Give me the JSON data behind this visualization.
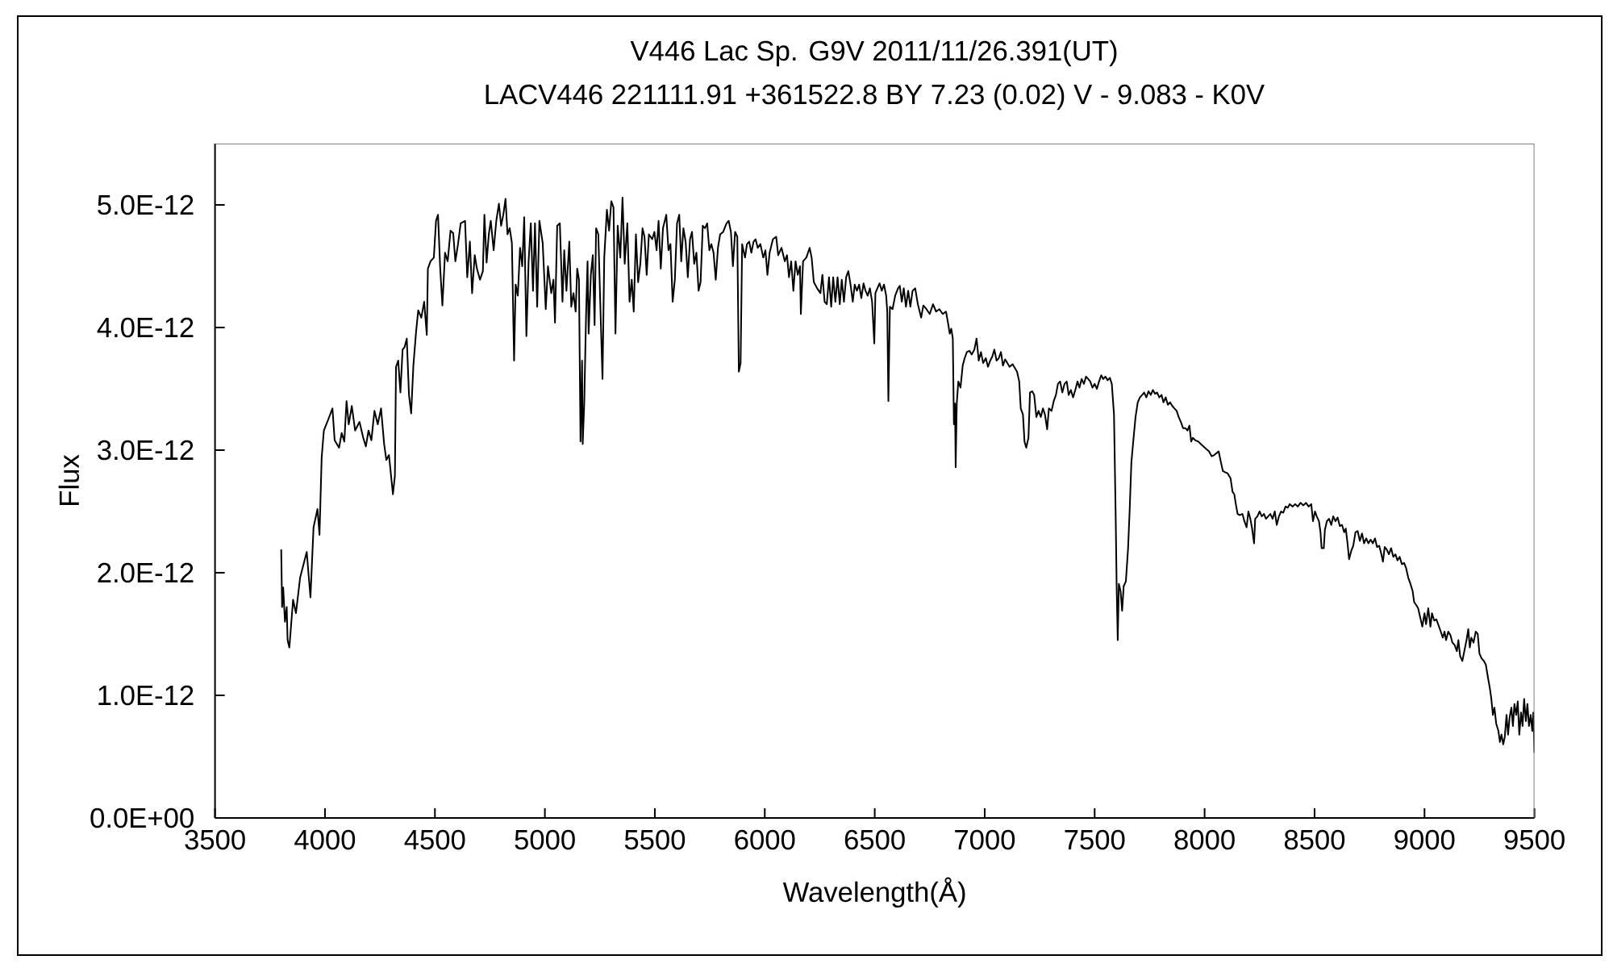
{
  "chart_data": {
    "type": "line",
    "title": "V446 Lac   Sp. G9V   2011/11/26.391(UT)",
    "subtitle": "LACV446 221111.91 +361522.8 BY 7.23 (0.02) V - 9.083 - K0V",
    "xlabel": "Wavelength(Å)",
    "ylabel": "Flux",
    "x": [
      3801,
      3805,
      3810,
      3818,
      3826,
      3830,
      3838,
      3855,
      3868,
      3887,
      3917,
      3934,
      3948,
      3966,
      3975,
      3985,
      3995,
      4015,
      4034,
      4044,
      4064,
      4076,
      4088,
      4098,
      4108,
      4122,
      4137,
      4157,
      4174,
      4186,
      4198,
      4211,
      4225,
      4240,
      4255,
      4269,
      4279,
      4291,
      4309,
      4318,
      4323,
      4333,
      4343,
      4353,
      4362,
      4372,
      4382,
      4392,
      4402,
      4414,
      4424,
      4438,
      4451,
      4463,
      4468,
      4480,
      4495,
      4505,
      4514,
      4524,
      4534,
      4546,
      4558,
      4571,
      4583,
      4593,
      4605,
      4617,
      4637,
      4647,
      4659,
      4669,
      4681,
      4691,
      4705,
      4718,
      4725,
      4735,
      4745,
      4754,
      4767,
      4779,
      4791,
      4801,
      4811,
      4821,
      4830,
      4840,
      4850,
      4860,
      4867,
      4877,
      4887,
      4897,
      4906,
      4916,
      4926,
      4936,
      4946,
      4955,
      4965,
      4975,
      4990,
      5004,
      5014,
      5029,
      5039,
      5046,
      5056,
      5068,
      5080,
      5088,
      5098,
      5111,
      5120,
      5130,
      5140,
      5147,
      5155,
      5162,
      5169,
      5172,
      5179,
      5187,
      5194,
      5199,
      5209,
      5218,
      5226,
      5233,
      5243,
      5253,
      5262,
      5270,
      5282,
      5292,
      5302,
      5312,
      5321,
      5331,
      5343,
      5353,
      5363,
      5375,
      5385,
      5395,
      5404,
      5414,
      5424,
      5434,
      5444,
      5453,
      5463,
      5473,
      5488,
      5498,
      5508,
      5517,
      5527,
      5537,
      5552,
      5562,
      5571,
      5581,
      5591,
      5601,
      5611,
      5620,
      5630,
      5640,
      5650,
      5660,
      5669,
      5679,
      5689,
      5699,
      5708,
      5718,
      5728,
      5738,
      5748,
      5757,
      5767,
      5777,
      5787,
      5797,
      5811,
      5826,
      5836,
      5846,
      5855,
      5865,
      5875,
      5882,
      5890,
      5897,
      5910,
      5919,
      5929,
      5939,
      5949,
      5958,
      5968,
      5980,
      5993,
      6003,
      6012,
      6022,
      6037,
      6052,
      6061,
      6076,
      6091,
      6101,
      6110,
      6120,
      6130,
      6140,
      6150,
      6160,
      6164,
      6174,
      6189,
      6204,
      6213,
      6223,
      6238,
      6253,
      6262,
      6272,
      6282,
      6292,
      6302,
      6311,
      6321,
      6331,
      6341,
      6350,
      6360,
      6370,
      6380,
      6390,
      6400,
      6409,
      6419,
      6429,
      6439,
      6449,
      6458,
      6468,
      6478,
      6488,
      6498,
      6503,
      6512,
      6522,
      6532,
      6542,
      6552,
      6557,
      6562,
      6569,
      6581,
      6593,
      6606,
      6614,
      6623,
      6632,
      6642,
      6652,
      6662,
      6672,
      6684,
      6696,
      6711,
      6721,
      6735,
      6750,
      6765,
      6779,
      6794,
      6809,
      6824,
      6833,
      6841,
      6848,
      6855,
      6860,
      6865,
      6868,
      6873,
      6880,
      6890,
      6900,
      6909,
      6919,
      6931,
      6941,
      6953,
      6963,
      6973,
      6983,
      6993,
      7005,
      7015,
      7025,
      7034,
      7044,
      7054,
      7064,
      7074,
      7083,
      7093,
      7103,
      7113,
      7127,
      7137,
      7147,
      7157,
      7164,
      7174,
      7181,
      7189,
      7199,
      7206,
      7216,
      7225,
      7235,
      7245,
      7255,
      7265,
      7274,
      7284,
      7292,
      7304,
      7314,
      7324,
      7333,
      7343,
      7353,
      7363,
      7373,
      7382,
      7392,
      7402,
      7412,
      7422,
      7431,
      7441,
      7451,
      7461,
      7471,
      7480,
      7490,
      7500,
      7510,
      7520,
      7530,
      7539,
      7549,
      7559,
      7569,
      7578,
      7588,
      7596,
      7600,
      7605,
      7610,
      7618,
      7625,
      7632,
      7642,
      7652,
      7659,
      7667,
      7677,
      7686,
      7696,
      7706,
      7716,
      7725,
      7735,
      7745,
      7755,
      7765,
      7774,
      7784,
      7794,
      7804,
      7813,
      7823,
      7833,
      7843,
      7853,
      7863,
      7873,
      7882,
      7892,
      7902,
      7912,
      7922,
      7931,
      7939,
      7946,
      7958,
      7971,
      7983,
      7995,
      8007,
      8020,
      8032,
      8044,
      8064,
      8073,
      8083,
      8093,
      8105,
      8118,
      8127,
      8135,
      8142,
      8150,
      8160,
      8172,
      8181,
      8191,
      8199,
      8208,
      8216,
      8225,
      8230,
      8240,
      8250,
      8260,
      8270,
      8279,
      8289,
      8299,
      8309,
      8319,
      8328,
      8338,
      8348,
      8358,
      8368,
      8378,
      8387,
      8400,
      8412,
      8424,
      8436,
      8449,
      8461,
      8473,
      8485,
      8493,
      8502,
      8510,
      8520,
      8527,
      8532,
      8542,
      8547,
      8556,
      8566,
      8576,
      8585,
      8595,
      8605,
      8615,
      8625,
      8635,
      8642,
      8650,
      8657,
      8667,
      8676,
      8686,
      8696,
      8706,
      8716,
      8725,
      8735,
      8745,
      8755,
      8765,
      8775,
      8784,
      8794,
      8804,
      8811,
      8819,
      8828,
      8838,
      8848,
      8858,
      8868,
      8877,
      8887,
      8897,
      8907,
      8916,
      8926,
      8936,
      8946,
      8953,
      8961,
      8971,
      8980,
      8990,
      9000,
      9007,
      9017,
      9027,
      9034,
      9044,
      9054,
      9064,
      9074,
      9083,
      9091,
      9098,
      9108,
      9118,
      9127,
      9137,
      9147,
      9154,
      9162,
      9172,
      9181,
      9191,
      9199,
      9206,
      9213,
      9223,
      9233,
      9242,
      9250,
      9260,
      9270,
      9279,
      9289,
      9297,
      9304,
      9311,
      9318,
      9326,
      9336,
      9343,
      9350,
      9358,
      9365,
      9373,
      9380,
      9387,
      9395,
      9402,
      9409,
      9417,
      9424,
      9431,
      9439,
      9446,
      9453,
      9461,
      9468,
      9475,
      9483,
      9490,
      9495,
      9500
    ],
    "series": [
      {
        "color": "#000000",
        "values": [
          2.19e-12,
          1.72e-12,
          1.88e-12,
          1.6e-12,
          1.72e-12,
          1.45e-12,
          1.39e-12,
          1.78e-12,
          1.67e-12,
          1.96e-12,
          2.17e-12,
          1.8e-12,
          2.37e-12,
          2.52e-12,
          2.31e-12,
          2.94e-12,
          3.16e-12,
          3.25e-12,
          3.34e-12,
          3.08e-12,
          3.02e-12,
          3.14e-12,
          3.07e-12,
          3.4e-12,
          3.21e-12,
          3.36e-12,
          3.16e-12,
          3.23e-12,
          3.1e-12,
          3.03e-12,
          3.16e-12,
          3.08e-12,
          3.32e-12,
          3.21e-12,
          3.34e-12,
          3.05e-12,
          2.92e-12,
          2.96e-12,
          2.64e-12,
          2.79e-12,
          3.68e-12,
          3.73e-12,
          3.47e-12,
          3.82e-12,
          3.84e-12,
          3.91e-12,
          3.45e-12,
          3.3e-12,
          3.69e-12,
          3.96e-12,
          4.14e-12,
          4.08e-12,
          4.21e-12,
          3.94e-12,
          4.48e-12,
          4.54e-12,
          4.57e-12,
          4.87e-12,
          4.92e-12,
          4.48e-12,
          4.18e-12,
          4.61e-12,
          4.54e-12,
          4.79e-12,
          4.77e-12,
          4.54e-12,
          4.68e-12,
          4.85e-12,
          4.87e-12,
          4.41e-12,
          4.7e-12,
          4.28e-12,
          4.59e-12,
          4.48e-12,
          4.39e-12,
          4.46e-12,
          4.92e-12,
          4.53e-12,
          4.76e-12,
          4.87e-12,
          4.63e-12,
          4.87e-12,
          5.01e-12,
          4.83e-12,
          4.92e-12,
          5.05e-12,
          4.76e-12,
          4.81e-12,
          4.69e-12,
          3.73e-12,
          4.35e-12,
          4.26e-12,
          4.65e-12,
          4.5e-12,
          4.9e-12,
          3.93e-12,
          4.54e-12,
          4.85e-12,
          4.3e-12,
          4.85e-12,
          4.17e-12,
          4.87e-12,
          4.69e-12,
          4.15e-12,
          4.5e-12,
          4.28e-12,
          4.39e-12,
          4.04e-12,
          4.83e-12,
          4.85e-12,
          4.21e-12,
          4.63e-12,
          4.3e-12,
          4.7e-12,
          4.17e-12,
          4.28e-12,
          4.13e-12,
          4.48e-12,
          4.39e-12,
          3.07e-12,
          3.73e-12,
          3.05e-12,
          3.38e-12,
          4.08e-12,
          4.54e-12,
          3.95e-12,
          4.43e-12,
          4.59e-12,
          4.02e-12,
          4.81e-12,
          4.76e-12,
          4.13e-12,
          3.58e-12,
          4.57e-12,
          4.96e-12,
          4.79e-12,
          5.03e-12,
          4.98e-12,
          3.95e-12,
          4.83e-12,
          4.57e-12,
          5.06e-12,
          4.52e-12,
          4.85e-12,
          4.21e-12,
          4.39e-12,
          4.13e-12,
          4.76e-12,
          4.37e-12,
          4.52e-12,
          4.81e-12,
          4.74e-12,
          4.43e-12,
          4.76e-12,
          4.72e-12,
          4.78e-12,
          4.63e-12,
          4.87e-12,
          4.48e-12,
          4.81e-12,
          4.92e-12,
          4.63e-12,
          4.68e-12,
          4.21e-12,
          4.39e-12,
          4.85e-12,
          4.92e-12,
          4.54e-12,
          4.81e-12,
          4.7e-12,
          4.41e-12,
          4.72e-12,
          4.78e-12,
          4.52e-12,
          4.61e-12,
          4.3e-12,
          4.37e-12,
          4.83e-12,
          4.81e-12,
          4.85e-12,
          4.63e-12,
          4.68e-12,
          4.61e-12,
          4.39e-12,
          4.65e-12,
          4.76e-12,
          4.78e-12,
          4.85e-12,
          4.87e-12,
          4.78e-12,
          4.5e-12,
          4.78e-12,
          4.74e-12,
          3.64e-12,
          3.71e-12,
          4.68e-12,
          4.57e-12,
          4.68e-12,
          4.7e-12,
          4.61e-12,
          4.7e-12,
          4.72e-12,
          4.65e-12,
          4.68e-12,
          4.57e-12,
          4.63e-12,
          4.43e-12,
          4.61e-12,
          4.72e-12,
          4.74e-12,
          4.59e-12,
          4.65e-12,
          4.54e-12,
          4.59e-12,
          4.41e-12,
          4.54e-12,
          4.3e-12,
          4.54e-12,
          4.43e-12,
          4.5e-12,
          4.11e-12,
          4.54e-12,
          4.57e-12,
          4.65e-12,
          4.57e-12,
          4.37e-12,
          4.32e-12,
          4.28e-12,
          4.43e-12,
          4.21e-12,
          4.19e-12,
          4.41e-12,
          4.17e-12,
          4.41e-12,
          4.21e-12,
          4.41e-12,
          4.19e-12,
          4.39e-12,
          4.21e-12,
          4.41e-12,
          4.46e-12,
          4.35e-12,
          4.21e-12,
          4.35e-12,
          4.3e-12,
          4.35e-12,
          4.24e-12,
          4.36e-12,
          4.3e-12,
          4.26e-12,
          4.32e-12,
          4.21e-12,
          3.87e-12,
          4.28e-12,
          4.32e-12,
          4.36e-12,
          4.3e-12,
          4.35e-12,
          4.26e-12,
          4.13e-12,
          3.4e-12,
          4.17e-12,
          4.15e-12,
          4.26e-12,
          4.32e-12,
          4.34e-12,
          4.21e-12,
          4.32e-12,
          4.17e-12,
          4.3e-12,
          4.17e-12,
          4.3e-12,
          4.32e-12,
          4.19e-12,
          4.08e-12,
          4.18e-12,
          4.15e-12,
          4.11e-12,
          4.19e-12,
          4.13e-12,
          4.15e-12,
          4.11e-12,
          4.13e-12,
          4.04e-12,
          3.95e-12,
          3.99e-12,
          3.91e-12,
          3.21e-12,
          3.38e-12,
          2.86e-12,
          3.38e-12,
          3.56e-12,
          3.51e-12,
          3.69e-12,
          3.75e-12,
          3.8e-12,
          3.81e-12,
          3.78e-12,
          3.82e-12,
          3.91e-12,
          3.73e-12,
          3.8e-12,
          3.71e-12,
          3.75e-12,
          3.68e-12,
          3.73e-12,
          3.76e-12,
          3.82e-12,
          3.73e-12,
          3.75e-12,
          3.8e-12,
          3.69e-12,
          3.74e-12,
          3.71e-12,
          3.68e-12,
          3.7e-12,
          3.67e-12,
          3.64e-12,
          3.56e-12,
          3.34e-12,
          3.29e-12,
          3.07e-12,
          3.02e-12,
          3.1e-12,
          3.47e-12,
          3.48e-12,
          3.45e-12,
          3.27e-12,
          3.32e-12,
          3.27e-12,
          3.34e-12,
          3.29e-12,
          3.17e-12,
          3.34e-12,
          3.32e-12,
          3.4e-12,
          3.45e-12,
          3.54e-12,
          3.56e-12,
          3.47e-12,
          3.54e-12,
          3.56e-12,
          3.45e-12,
          3.49e-12,
          3.43e-12,
          3.49e-12,
          3.56e-12,
          3.51e-12,
          3.58e-12,
          3.54e-12,
          3.6e-12,
          3.58e-12,
          3.56e-12,
          3.51e-12,
          3.54e-12,
          3.5e-12,
          3.56e-12,
          3.61e-12,
          3.58e-12,
          3.6e-12,
          3.57e-12,
          3.59e-12,
          3.54e-12,
          3.29e-12,
          2.42e-12,
          1.89e-12,
          1.45e-12,
          1.91e-12,
          1.85e-12,
          1.69e-12,
          1.89e-12,
          1.93e-12,
          2.2e-12,
          2.5e-12,
          2.9e-12,
          3.1e-12,
          3.27e-12,
          3.39e-12,
          3.43e-12,
          3.45e-12,
          3.47e-12,
          3.43e-12,
          3.48e-12,
          3.45e-12,
          3.49e-12,
          3.46e-12,
          3.47e-12,
          3.43e-12,
          3.45e-12,
          3.39e-12,
          3.43e-12,
          3.37e-12,
          3.39e-12,
          3.36e-12,
          3.34e-12,
          3.32e-12,
          3.27e-12,
          3.23e-12,
          3.18e-12,
          3.18e-12,
          3.16e-12,
          3.2e-12,
          3.07e-12,
          3.1e-12,
          3.08e-12,
          3.07e-12,
          3.05e-12,
          3.03e-12,
          3.01e-12,
          2.99e-12,
          2.95e-12,
          2.96e-12,
          2.99e-12,
          2.91e-12,
          2.83e-12,
          2.82e-12,
          2.81e-12,
          2.77e-12,
          2.66e-12,
          2.64e-12,
          2.56e-12,
          2.48e-12,
          2.47e-12,
          2.48e-12,
          2.42e-12,
          2.37e-12,
          2.5e-12,
          2.44e-12,
          2.36e-12,
          2.24e-12,
          2.44e-12,
          2.46e-12,
          2.5e-12,
          2.46e-12,
          2.48e-12,
          2.44e-12,
          2.46e-12,
          2.48e-12,
          2.44e-12,
          2.5e-12,
          2.39e-12,
          2.46e-12,
          2.5e-12,
          2.49e-12,
          2.54e-12,
          2.53e-12,
          2.56e-12,
          2.54e-12,
          2.56e-12,
          2.54e-12,
          2.57e-12,
          2.55e-12,
          2.57e-12,
          2.54e-12,
          2.56e-12,
          2.42e-12,
          2.5e-12,
          2.46e-12,
          2.42e-12,
          2.33e-12,
          2.2e-12,
          2.2e-12,
          2.35e-12,
          2.42e-12,
          2.44e-12,
          2.39e-12,
          2.46e-12,
          2.42e-12,
          2.45e-12,
          2.38e-12,
          2.39e-12,
          2.33e-12,
          2.36e-12,
          2.24e-12,
          2.11e-12,
          2.18e-12,
          2.22e-12,
          2.33e-12,
          2.34e-12,
          2.26e-12,
          2.32e-12,
          2.24e-12,
          2.28e-12,
          2.24e-12,
          2.27e-12,
          2.24e-12,
          2.28e-12,
          2.21e-12,
          2.22e-12,
          2.15e-12,
          2.09e-12,
          2.21e-12,
          2.19e-12,
          2.15e-12,
          2.2e-12,
          2.13e-12,
          2.15e-12,
          2.1e-12,
          2.13e-12,
          2.07e-12,
          2.08e-12,
          2.04e-12,
          1.96e-12,
          1.91e-12,
          1.85e-12,
          1.76e-12,
          1.74e-12,
          1.71e-12,
          1.64e-12,
          1.56e-12,
          1.67e-12,
          1.58e-12,
          1.71e-12,
          1.56e-12,
          1.67e-12,
          1.61e-12,
          1.62e-12,
          1.57e-12,
          1.52e-12,
          1.47e-12,
          1.52e-12,
          1.45e-12,
          1.52e-12,
          1.49e-12,
          1.43e-12,
          1.41e-12,
          1.36e-12,
          1.45e-12,
          1.32e-12,
          1.28e-12,
          1.36e-12,
          1.45e-12,
          1.54e-12,
          1.39e-12,
          1.47e-12,
          1.43e-12,
          1.52e-12,
          1.5e-12,
          1.34e-12,
          1.3e-12,
          1.28e-12,
          1.25e-12,
          1.14e-12,
          1.06e-12,
          9.7e-13,
          8.4e-13,
          9e-13,
          7.7e-13,
          7.1e-13,
          6.2e-13,
          6.8e-13,
          6e-13,
          6.6e-13,
          8.4e-13,
          6.8e-13,
          8.2e-13,
          9e-13,
          7.5e-13,
          9.3e-13,
          8.4e-13,
          9.5e-13,
          6.8e-13,
          8.6e-13,
          7.5e-13,
          9.7e-13,
          7.9e-13,
          9.3e-13,
          7.5e-13,
          8.4e-13,
          7.1e-13,
          8.6e-13,
          5.3e-13
        ]
      }
    ],
    "xlim": [
      3500,
      9500
    ],
    "ylim": [
      0,
      5.5e-12
    ],
    "xticks": [
      3500,
      4000,
      4500,
      5000,
      5500,
      6000,
      6500,
      7000,
      7500,
      8000,
      8500,
      9000,
      9500
    ],
    "yticks": [
      {
        "value": 0,
        "label": "0.0E+00"
      },
      {
        "value": 1e-12,
        "label": "1.0E-12"
      },
      {
        "value": 2e-12,
        "label": "2.0E-12"
      },
      {
        "value": 3e-12,
        "label": "3.0E-12"
      },
      {
        "value": 4e-12,
        "label": "4.0E-12"
      },
      {
        "value": 5e-12,
        "label": "5.0E-12"
      }
    ],
    "marker": "none",
    "line_style": "solid"
  }
}
